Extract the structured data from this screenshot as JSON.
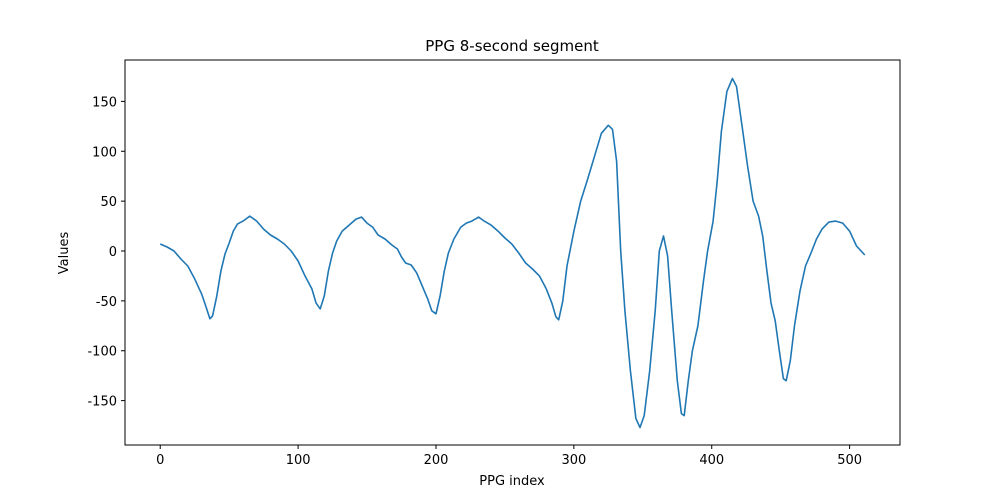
{
  "chart_data": {
    "type": "line",
    "title": "PPG 8-second segment",
    "x_label": "PPG index",
    "y_label": "Values",
    "xlim": [
      -25.55,
      536.55
    ],
    "ylim": [
      -194.5,
      191.5
    ],
    "xticks": [
      0,
      100,
      200,
      300,
      400,
      500
    ],
    "yticks": [
      -150,
      -100,
      -50,
      0,
      50,
      100,
      150
    ],
    "series": [
      {
        "color": "#1f77b4",
        "x": [
          0,
          5,
          10,
          15,
          20,
          25,
          30,
          33,
          36,
          38,
          41,
          44,
          47,
          50,
          53,
          56,
          60,
          65,
          70,
          75,
          80,
          85,
          90,
          95,
          100,
          105,
          110,
          113,
          116,
          119,
          122,
          125,
          128,
          132,
          137,
          142,
          146,
          150,
          154,
          158,
          163,
          168,
          172,
          175,
          178,
          182,
          186,
          190,
          194,
          197,
          200,
          203,
          206,
          209,
          213,
          218,
          222,
          226,
          231,
          235,
          240,
          245,
          250,
          255,
          260,
          265,
          270,
          275,
          280,
          284,
          287,
          289,
          292,
          295,
          300,
          305,
          310,
          315,
          320,
          325,
          328,
          331,
          334,
          337,
          341,
          345,
          348,
          351,
          355,
          359,
          362,
          365,
          368,
          371,
          375,
          378,
          380,
          383,
          386,
          390,
          394,
          397,
          401,
          404,
          407,
          411,
          415,
          418,
          422,
          426,
          430,
          434,
          437,
          440,
          443,
          446,
          449,
          452,
          454,
          457,
          460,
          464,
          468,
          472,
          476,
          480,
          485,
          490,
          495,
          500,
          505,
          511
        ],
        "values": [
          7,
          4,
          0,
          -8,
          -15,
          -28,
          -43,
          -55,
          -68,
          -65,
          -45,
          -20,
          -3,
          8,
          20,
          27,
          30,
          35,
          30,
          22,
          16,
          12,
          7,
          0,
          -10,
          -25,
          -38,
          -52,
          -58,
          -45,
          -20,
          -2,
          10,
          20,
          26,
          32,
          34,
          28,
          24,
          16,
          12,
          6,
          2,
          -6,
          -12,
          -14,
          -22,
          -35,
          -48,
          -60,
          -63,
          -45,
          -20,
          -2,
          12,
          24,
          28,
          30,
          34,
          30,
          26,
          20,
          13,
          7,
          -2,
          -12,
          -18,
          -25,
          -38,
          -52,
          -66,
          -69,
          -50,
          -15,
          20,
          50,
          72,
          95,
          118,
          126,
          122,
          90,
          0,
          -60,
          -120,
          -168,
          -177,
          -165,
          -120,
          -60,
          0,
          15,
          -5,
          -60,
          -130,
          -163,
          -165,
          -130,
          -100,
          -75,
          -30,
          0,
          30,
          70,
          120,
          160,
          173,
          165,
          125,
          85,
          50,
          35,
          15,
          -20,
          -52,
          -70,
          -100,
          -128,
          -130,
          -110,
          -75,
          -40,
          -15,
          -2,
          12,
          22,
          29,
          30,
          28,
          20,
          5,
          -4
        ]
      }
    ]
  }
}
